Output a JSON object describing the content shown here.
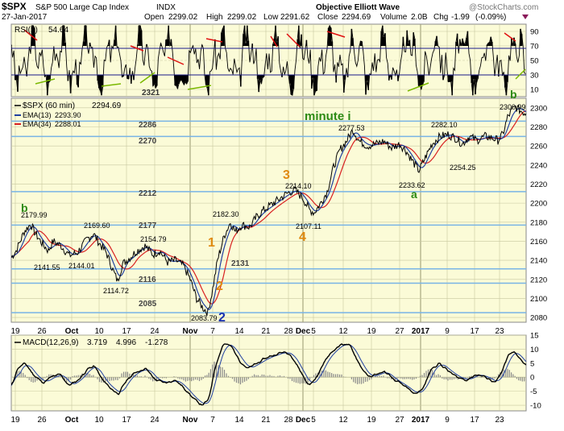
{
  "header": {
    "symbol": "$SPX",
    "name": "S&P 500 Large Cap Index",
    "exchange": "INDX",
    "date": "27-Jan-2017",
    "open_label": "Open",
    "open": "2299.02",
    "high_label": "High",
    "high": "2299.02",
    "low_label": "Low",
    "low": "2291.62",
    "close_label": "Close",
    "close": "2294.69",
    "volume_label": "Volume",
    "volume": "2.0B",
    "chg_label": "Chg",
    "chg": "-1.99",
    "chg_pct": "(-0.09%)",
    "title": "Objective Elliott Wave",
    "watermark": "@StockCharts.com"
  },
  "colors": {
    "panel_bg": "#fbfbd7",
    "grid": "#c8c8a0",
    "support_line": "#78b4e6",
    "price": "#000000",
    "ema13": "#1f3fa0",
    "ema34": "#d82020",
    "wave_orange": "#e08a10",
    "wave_green": "#2c8a14",
    "wave_blue": "#1830b0",
    "divergence_red": "#e01010",
    "divergence_green": "#7ab800"
  },
  "rsi_panel": {
    "label": "RSI(5)",
    "value": "54.64",
    "levels": [
      "90",
      "70",
      "50",
      "30",
      "10"
    ],
    "level_annotation": "2321"
  },
  "price_panel": {
    "label": "$SPX (60 min)",
    "value": "2294.69",
    "ema13_label": "EMA(13)",
    "ema13_value": "2293.90",
    "ema34_label": "EMA(34)",
    "ema34_value": "2288.01",
    "support_levels": [
      "2286",
      "2270",
      "2212",
      "2177",
      "2131",
      "2116",
      "2085"
    ],
    "price_labels": [
      "2179.99",
      "2169.60",
      "2154.79",
      "2141.55",
      "2144.01",
      "2114.72",
      "2083.79",
      "2182.30",
      "2214.10",
      "2107.11",
      "2277.53",
      "2282.10",
      "2233.62",
      "2254.25",
      "2300.99"
    ],
    "wave_labels": [
      "b",
      "1",
      "2",
      "2",
      "3",
      "4",
      "minute i",
      "a",
      "b"
    ]
  },
  "macd_panel": {
    "label": "MACD(12,26,9)",
    "macd": "3.719",
    "signal": "4.996",
    "histogram": "-1.278"
  },
  "x_axis_labels": [
    "19",
    "26",
    "Oct",
    "10",
    "17",
    "24",
    "Nov",
    "7",
    "14",
    "21",
    "28",
    "Dec",
    "5",
    "12",
    "19",
    "27",
    "2017",
    "9",
    "17",
    "23"
  ],
  "chart_data": {
    "type": "line",
    "title": "$SPX S&P 500 Large Cap Index INDX",
    "xlabel": "",
    "ylabel": "",
    "ylim": [
      2075,
      2310
    ],
    "y_ticks": [
      2080,
      2100,
      2120,
      2140,
      2160,
      2180,
      2200,
      2220,
      2240,
      2260,
      2280,
      2300
    ],
    "categories": [
      "19",
      "26",
      "Oct",
      "10",
      "17",
      "24",
      "Nov",
      "7",
      "14",
      "21",
      "28",
      "Dec",
      "5",
      "12",
      "19",
      "27",
      "2017",
      "9",
      "17",
      "23"
    ],
    "series": [
      {
        "name": "$SPX (60 min)",
        "values": [
          2150,
          2175,
          2160,
          2158,
          2138,
          2140,
          2132,
          2090,
          2155,
          2176,
          2205,
          2195,
          2210,
          2262,
          2270,
          2257,
          2269,
          2272,
          2270,
          2296
        ]
      },
      {
        "name": "EMA(13)",
        "values": [
          2148,
          2172,
          2160,
          2159,
          2140,
          2141,
          2133,
          2095,
          2150,
          2174,
          2204,
          2196,
          2208,
          2258,
          2269,
          2258,
          2268,
          2271,
          2270,
          2294
        ]
      },
      {
        "name": "EMA(34)",
        "values": [
          2145,
          2168,
          2159,
          2158,
          2142,
          2141,
          2135,
          2102,
          2142,
          2170,
          2200,
          2197,
          2205,
          2252,
          2267,
          2259,
          2266,
          2270,
          2270,
          2288
        ]
      }
    ],
    "grid": true,
    "legend": "top-left"
  }
}
